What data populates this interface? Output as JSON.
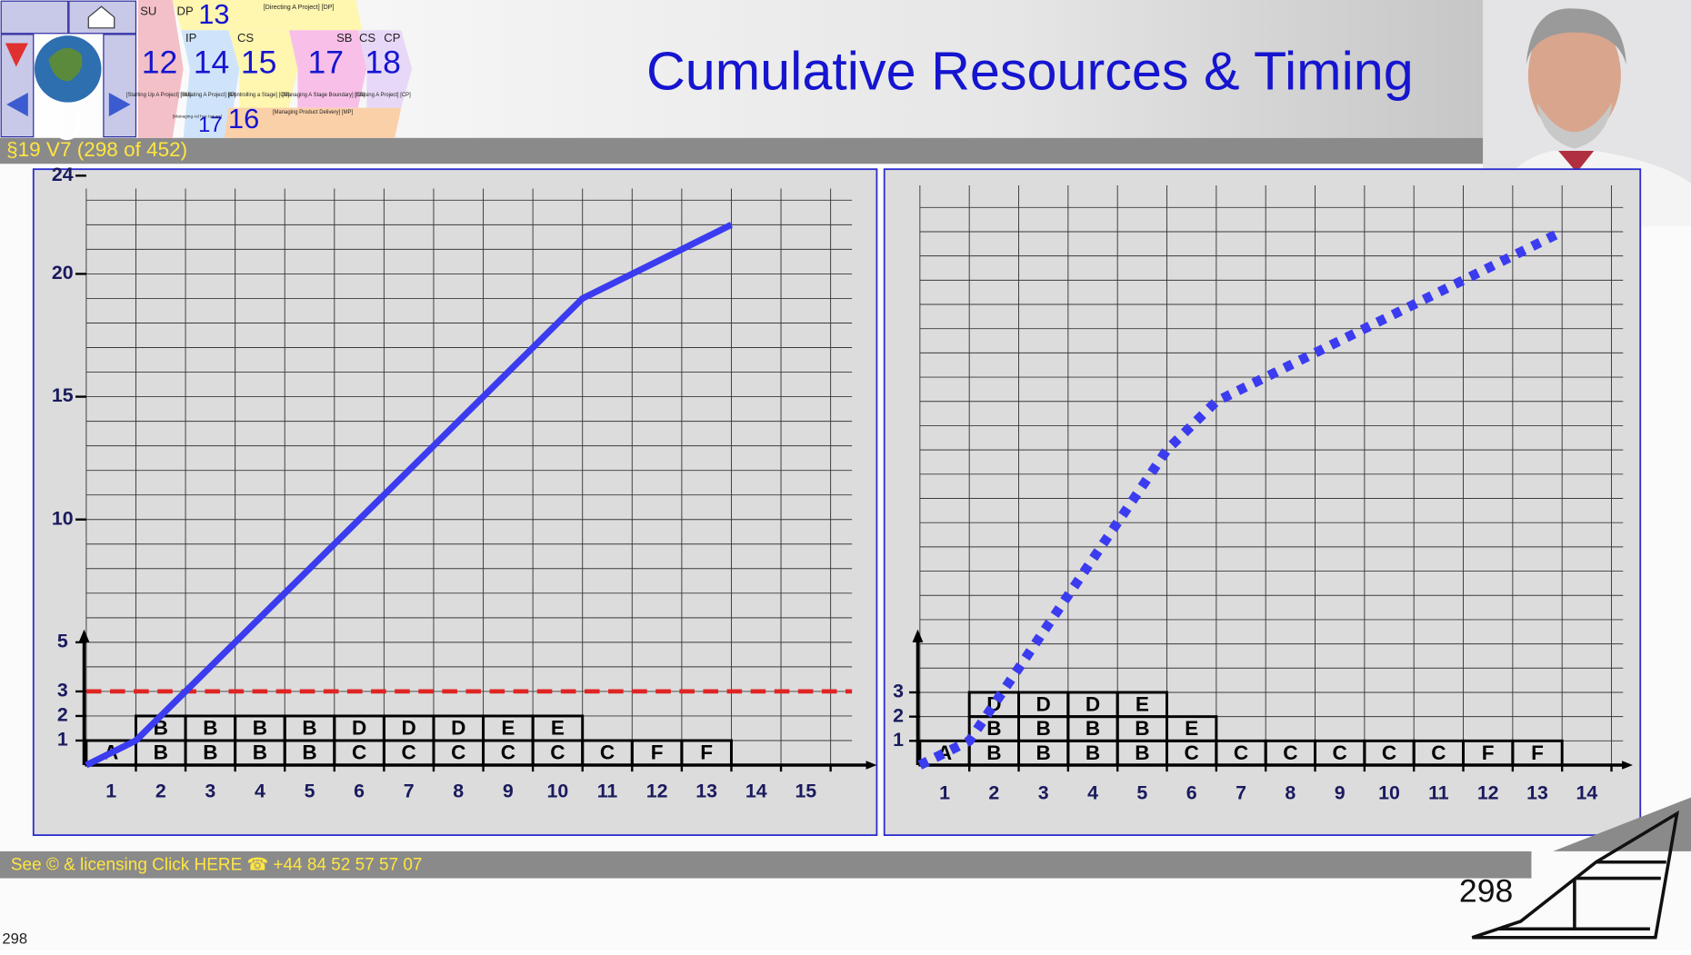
{
  "header": {
    "title": "Cumulative Resources & Timing",
    "section": "§19 V7 (298 of 452)"
  },
  "nav": {
    "tabs": [
      {
        "code": "SU",
        "number": "12",
        "label": "[Starting Up A Project] [SU]"
      },
      {
        "code": "DP",
        "number": "13",
        "label": "[Directing A Project] [DP]"
      },
      {
        "code": "IP",
        "number": "14",
        "label": "[Initiating A Project] [IP]"
      },
      {
        "code": "CS",
        "number": "15",
        "label": "[Controlling a Stage] [CS]"
      },
      {
        "code": "SB",
        "number": "17",
        "label": "[Managing A Stage Boundary] [SB]"
      },
      {
        "prefix": "CS",
        "code": "CP",
        "number": "18",
        "label": "[Closing A Project] [CP]"
      },
      {
        "number": "16",
        "label": "[Managing Product Delivery] [MP]"
      },
      {
        "number": "17",
        "label": "[Managing Ad hoc Issues]"
      }
    ]
  },
  "footer": {
    "licensing": "See © & licensing  Click HERE ☎ +44 84 52 57 57 07",
    "slide_number": "298",
    "page": "298"
  },
  "chart_data": [
    {
      "type": "line",
      "categories": [
        "1",
        "2",
        "3",
        "4",
        "5",
        "6",
        "7",
        "8",
        "9",
        "10",
        "11",
        "12",
        "13",
        "14",
        "15"
      ],
      "x": [
        0,
        1,
        2,
        3,
        4,
        5,
        6,
        7,
        8,
        9,
        10,
        11,
        12,
        13
      ],
      "values": [
        0,
        1,
        3,
        5,
        7,
        9,
        11,
        13,
        15,
        17,
        19,
        20,
        21,
        22
      ],
      "color": "#3b3bf0",
      "line_style": "solid",
      "xlim": [
        0,
        15.8
      ],
      "ylim": [
        0,
        24
      ],
      "yticks": [
        1,
        2,
        3,
        5,
        10,
        15,
        20,
        24
      ],
      "grid": true,
      "limit": {
        "value": 3,
        "color": "#e02424"
      },
      "blocks": [
        [
          "A",
          "B",
          "B",
          "B",
          "B",
          "C",
          "C",
          "C",
          "C",
          "C",
          "C",
          "F",
          "F"
        ],
        [
          null,
          "B",
          "B",
          "B",
          "B",
          "D",
          "D",
          "D",
          "E",
          "E"
        ]
      ]
    },
    {
      "type": "line",
      "categories": [
        "1",
        "2",
        "3",
        "4",
        "5",
        "6",
        "7",
        "8",
        "9",
        "10",
        "11",
        "12",
        "13",
        "14"
      ],
      "x": [
        0,
        1,
        2,
        3,
        4,
        5,
        6,
        7,
        8,
        9,
        10,
        11,
        12,
        13
      ],
      "values": [
        0,
        1,
        4,
        7,
        10,
        13,
        15,
        16,
        17,
        18,
        19,
        20,
        21,
        22
      ],
      "color": "#3b3bf0",
      "line_style": "dotted",
      "xlim": [
        0,
        14.3
      ],
      "ylim": [
        0,
        24
      ],
      "yticks": [
        1,
        2,
        3
      ],
      "grid": true,
      "blocks": [
        [
          "A",
          "B",
          "B",
          "B",
          "B",
          "C",
          "C",
          "C",
          "C",
          "C",
          "C",
          "F",
          "F"
        ],
        [
          null,
          "B",
          "B",
          "B",
          "B",
          "E"
        ],
        [
          null,
          "D",
          "D",
          "D",
          "E"
        ]
      ]
    }
  ]
}
